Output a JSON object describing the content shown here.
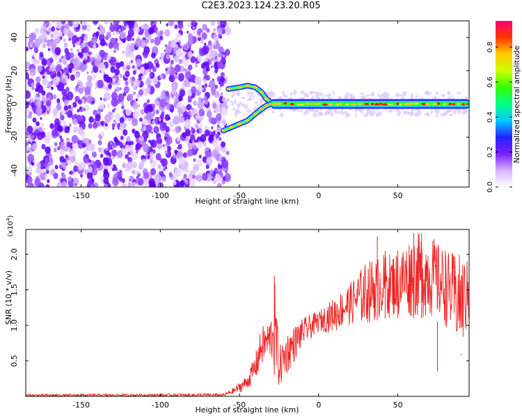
{
  "title": "C2E3.2023.124.23.20.R05",
  "chart_data": [
    {
      "type": "heatmap",
      "xlabel": "Height of straight line (km)",
      "ylabel": "Frequency (Hz)",
      "xlim": [
        -185,
        95
      ],
      "ylim": [
        -50,
        50
      ],
      "x_ticks": [
        -150,
        -100,
        -50,
        0,
        50
      ],
      "y_ticks": [
        -40,
        -20,
        0,
        20,
        40
      ],
      "colorbar": {
        "label": "Normalized spectral amplitude",
        "range": [
          0.0,
          0.95
        ],
        "ticks": [
          0.0,
          0.2,
          0.4,
          0.6,
          0.8
        ]
      },
      "regions": {
        "noise_region_x": [
          -185,
          -57
        ],
        "upper_branch": [
          [
            -57,
            9
          ],
          [
            -50,
            10
          ],
          [
            -45,
            11
          ],
          [
            -40,
            10
          ],
          [
            -36,
            7
          ],
          [
            -33,
            3
          ],
          [
            -30,
            1
          ],
          [
            -25,
            0
          ]
        ],
        "lower_branch": [
          [
            -60,
            -16
          ],
          [
            -55,
            -14
          ],
          [
            -50,
            -12
          ],
          [
            -45,
            -10
          ],
          [
            -40,
            -6
          ],
          [
            -36,
            -3
          ],
          [
            -33,
            -1
          ],
          [
            -30,
            0
          ]
        ],
        "main_trace_x": [
          -30,
          95
        ],
        "main_trace_y": 0
      }
    },
    {
      "type": "line",
      "xlabel": "Height of straight line (km)",
      "ylabel": "SNR (10 * v/v)",
      "y_multiplier": "(x10",
      "y_multiplier_exp": "4",
      "y_multiplier_close": ")",
      "xlim": [
        -185,
        95
      ],
      "ylim": [
        0,
        2.35
      ],
      "x_ticks": [
        -150,
        -100,
        -50,
        0,
        50
      ],
      "y_ticks": [
        0.5,
        1.0,
        1.5,
        2.0
      ],
      "y_tick_labels": [
        "0.5",
        "1.0",
        "1.5",
        "2.0"
      ],
      "color": "#ee2222",
      "envelope": [
        [
          -185,
          0.0,
          0.03
        ],
        [
          -60,
          0.0,
          0.04
        ],
        [
          -55,
          0.02,
          0.1
        ],
        [
          -50,
          0.05,
          0.2
        ],
        [
          -45,
          0.1,
          0.3
        ],
        [
          -40,
          0.2,
          0.6
        ],
        [
          -36,
          0.4,
          1.0
        ],
        [
          -33,
          0.5,
          1.0
        ],
        [
          -30,
          0.5,
          1.15
        ],
        [
          -28,
          0.3,
          1.7
        ],
        [
          -25,
          0.1,
          0.7
        ],
        [
          -20,
          0.3,
          0.9
        ],
        [
          -10,
          0.7,
          1.1
        ],
        [
          0,
          0.9,
          1.2
        ],
        [
          10,
          0.9,
          1.4
        ],
        [
          20,
          1.0,
          1.6
        ],
        [
          30,
          1.0,
          1.9
        ],
        [
          40,
          1.1,
          2.0
        ],
        [
          50,
          1.1,
          2.05
        ],
        [
          60,
          1.1,
          2.3
        ],
        [
          70,
          1.1,
          2.3
        ],
        [
          80,
          1.0,
          2.05
        ],
        [
          90,
          0.6,
          2.0
        ],
        [
          95,
          1.0,
          1.9
        ]
      ],
      "spikes": [
        [
          -28,
          1.7
        ],
        [
          37,
          2.25
        ],
        [
          42,
          2.05
        ],
        [
          50,
          2.05
        ],
        [
          60,
          2.3
        ],
        [
          65,
          2.3
        ],
        [
          80,
          2.05
        ],
        [
          90,
          0.58
        ],
        [
          75,
          0.35
        ]
      ]
    }
  ]
}
